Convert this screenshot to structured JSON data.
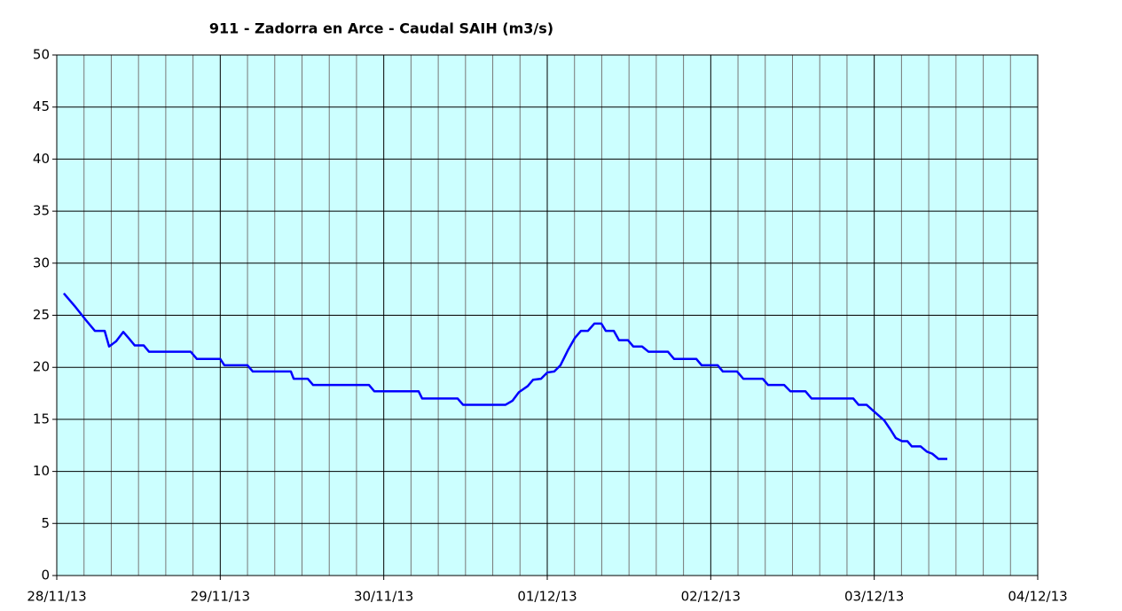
{
  "chart_data": {
    "type": "line",
    "title": "911 - Zadorra en Arce - Caudal SAIH (m3/s)",
    "x": [
      0.043,
      0.114,
      0.18,
      0.233,
      0.293,
      0.32,
      0.363,
      0.407,
      0.44,
      0.477,
      0.532,
      0.564,
      0.819,
      0.857,
      1.0,
      1.025,
      1.166,
      1.199,
      1.432,
      1.449,
      1.535,
      1.568,
      1.91,
      1.942,
      2.213,
      2.235,
      2.452,
      2.485,
      2.745,
      2.788,
      2.826,
      2.881,
      2.913,
      2.962,
      3.0,
      3.043,
      3.081,
      3.125,
      3.168,
      3.206,
      3.249,
      3.288,
      3.331,
      3.358,
      3.407,
      3.439,
      3.494,
      3.526,
      3.58,
      3.619,
      3.738,
      3.776,
      3.912,
      3.944,
      4.042,
      4.074,
      4.161,
      4.199,
      4.318,
      4.351,
      4.449,
      4.487,
      4.579,
      4.617,
      4.872,
      4.904,
      4.953,
      4.996,
      5.061,
      5.1,
      5.132,
      5.17,
      5.203,
      5.23,
      5.284,
      5.322,
      5.355,
      5.393,
      5.447
    ],
    "series": [
      {
        "name": "Caudal",
        "color": "#0000ff",
        "values": [
          27.1,
          25.8,
          24.5,
          23.5,
          23.5,
          22.0,
          22.5,
          23.4,
          22.8,
          22.1,
          22.1,
          21.5,
          21.5,
          20.8,
          20.8,
          20.2,
          20.2,
          19.6,
          19.6,
          18.9,
          18.9,
          18.3,
          18.3,
          17.7,
          17.7,
          17.0,
          17.0,
          16.4,
          16.4,
          16.8,
          17.6,
          18.2,
          18.8,
          18.9,
          19.5,
          19.6,
          20.2,
          21.6,
          22.8,
          23.5,
          23.5,
          24.2,
          24.2,
          23.5,
          23.5,
          22.6,
          22.6,
          22.0,
          22.0,
          21.5,
          21.5,
          20.8,
          20.8,
          20.2,
          20.2,
          19.6,
          19.6,
          18.9,
          18.9,
          18.3,
          18.3,
          17.7,
          17.7,
          17.0,
          17.0,
          16.4,
          16.4,
          15.8,
          14.9,
          14.0,
          13.2,
          12.9,
          12.9,
          12.4,
          12.4,
          11.9,
          11.7,
          11.2,
          11.2
        ]
      }
    ],
    "xlim": [
      0,
      6
    ],
    "xticks": [
      {
        "value": 0,
        "label": "28/11/13"
      },
      {
        "value": 1,
        "label": "29/11/13"
      },
      {
        "value": 2,
        "label": "30/11/13"
      },
      {
        "value": 3,
        "label": "01/12/13"
      },
      {
        "value": 4,
        "label": "02/12/13"
      },
      {
        "value": 5,
        "label": "03/12/13"
      },
      {
        "value": 6,
        "label": "04/12/13"
      }
    ],
    "minor_grid_divisions": 6,
    "ylim": [
      0,
      50
    ],
    "yticks": [
      0,
      5,
      10,
      15,
      20,
      25,
      30,
      35,
      40,
      45,
      50
    ],
    "grid": true,
    "background": "#ccffff"
  }
}
